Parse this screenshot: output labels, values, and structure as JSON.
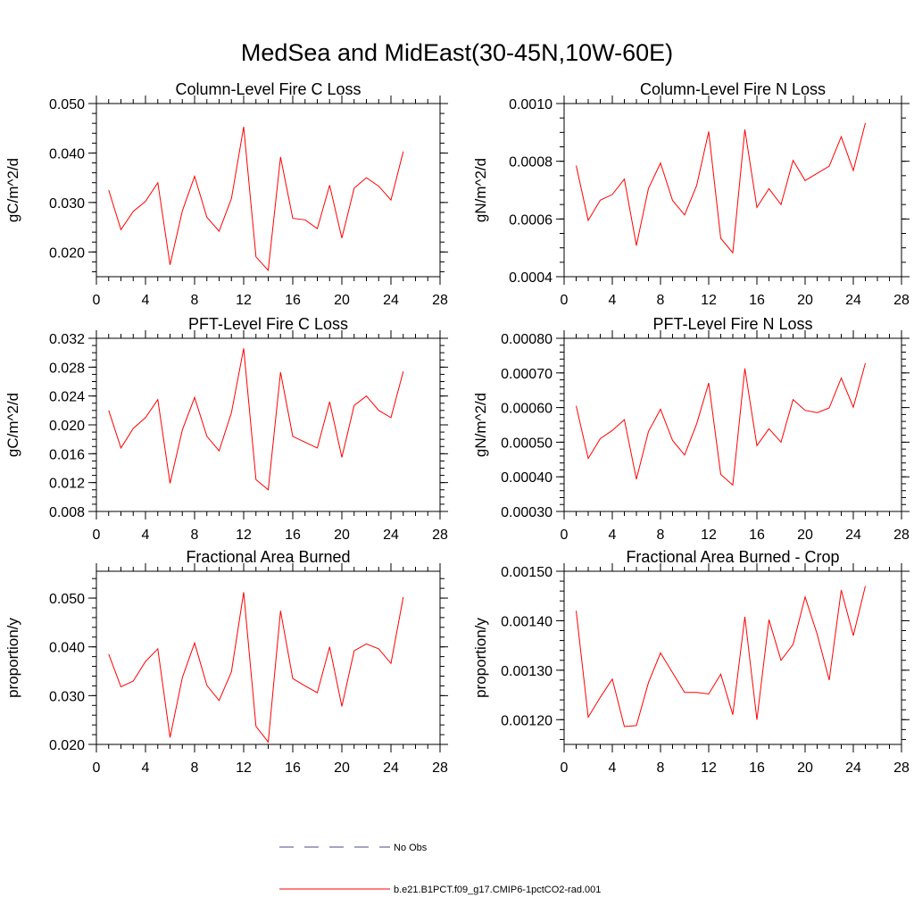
{
  "figure": {
    "title": "MedSea and MidEast(30-45N,10W-60E)"
  },
  "legend": {
    "entries": [
      {
        "label": "No Obs",
        "color": "#4a4a8a",
        "style": "dashed"
      },
      {
        "label": "b.e21.B1PCT.f09_g17.CMIP6-1pctCO2-rad.001",
        "color": "#ff0000",
        "style": "solid"
      }
    ]
  },
  "chart_data": [
    {
      "type": "line",
      "title": "Column-Level Fire C Loss",
      "ylabel": "gC/m^2/d",
      "xlim": [
        0,
        28
      ],
      "xticks": [
        0,
        4,
        8,
        12,
        16,
        20,
        24,
        28
      ],
      "ylim": [
        0.015,
        0.05
      ],
      "yticks": [
        0.02,
        0.03,
        0.04,
        0.05
      ],
      "ytick_labels": [
        "0.020",
        "0.030",
        "0.040",
        "0.050"
      ],
      "yminor_step": 0.002,
      "color": "#ff0000",
      "x": [
        1,
        2,
        3,
        4,
        5,
        6,
        7,
        8,
        9,
        10,
        11,
        12,
        13,
        14,
        15,
        16,
        17,
        18,
        19,
        20,
        21,
        22,
        23,
        24,
        25
      ],
      "values": [
        0.0325,
        0.0245,
        0.0282,
        0.0302,
        0.034,
        0.0174,
        0.0283,
        0.0353,
        0.027,
        0.0242,
        0.0308,
        0.0453,
        0.019,
        0.0163,
        0.0392,
        0.0268,
        0.0265,
        0.0247,
        0.0335,
        0.0228,
        0.0329,
        0.035,
        0.0333,
        0.0305,
        0.0403
      ]
    },
    {
      "type": "line",
      "title": "Column-Level Fire N Loss",
      "ylabel": "gN/m^2/d",
      "xlim": [
        0,
        28
      ],
      "xticks": [
        0,
        4,
        8,
        12,
        16,
        20,
        24,
        28
      ],
      "ylim": [
        0.0004,
        0.001
      ],
      "yticks": [
        0.0004,
        0.0006,
        0.0008,
        0.001
      ],
      "ytick_labels": [
        "0.0004",
        "0.0006",
        "0.0008",
        "0.0010"
      ],
      "yminor_step": 5e-05,
      "color": "#ff0000",
      "x": [
        1,
        2,
        3,
        4,
        5,
        6,
        7,
        8,
        9,
        10,
        11,
        12,
        13,
        14,
        15,
        16,
        17,
        18,
        19,
        20,
        21,
        22,
        23,
        24,
        25
      ],
      "values": [
        0.000785,
        0.000595,
        0.000665,
        0.000685,
        0.000738,
        0.000508,
        0.000706,
        0.000794,
        0.000664,
        0.000614,
        0.000716,
        0.000903,
        0.000533,
        0.000483,
        0.00091,
        0.00064,
        0.000705,
        0.00065,
        0.000803,
        0.000733,
        0.000758,
        0.000783,
        0.000885,
        0.000768,
        0.000933
      ]
    },
    {
      "type": "line",
      "title": "PFT-Level Fire C Loss",
      "ylabel": "gC/m^2/d",
      "xlim": [
        0,
        28
      ],
      "xticks": [
        0,
        4,
        8,
        12,
        16,
        20,
        24,
        28
      ],
      "ylim": [
        0.008,
        0.032
      ],
      "yticks": [
        0.008,
        0.012,
        0.016,
        0.02,
        0.024,
        0.028,
        0.032
      ],
      "ytick_labels": [
        "0.008",
        "0.012",
        "0.016",
        "0.020",
        "0.024",
        "0.028",
        "0.032"
      ],
      "yminor_step": 0.001,
      "color": "#ff0000",
      "x": [
        1,
        2,
        3,
        4,
        5,
        6,
        7,
        8,
        9,
        10,
        11,
        12,
        13,
        14,
        15,
        16,
        17,
        18,
        19,
        20,
        21,
        22,
        23,
        24,
        25
      ],
      "values": [
        0.022,
        0.0168,
        0.0195,
        0.021,
        0.0235,
        0.0119,
        0.0193,
        0.0238,
        0.0184,
        0.0164,
        0.0217,
        0.0306,
        0.0124,
        0.011,
        0.0273,
        0.0184,
        0.0176,
        0.0168,
        0.0232,
        0.0155,
        0.0227,
        0.024,
        0.022,
        0.021,
        0.0274
      ]
    },
    {
      "type": "line",
      "title": "PFT-Level Fire N Loss",
      "ylabel": "gN/m^2/d",
      "xlim": [
        0,
        28
      ],
      "xticks": [
        0,
        4,
        8,
        12,
        16,
        20,
        24,
        28
      ],
      "ylim": [
        0.0003,
        0.0008
      ],
      "yticks": [
        0.0003,
        0.0004,
        0.0005,
        0.0006,
        0.0007,
        0.0008
      ],
      "ytick_labels": [
        "0.00030",
        "0.00040",
        "0.00050",
        "0.00060",
        "0.00070",
        "0.00080"
      ],
      "yminor_step": 2e-05,
      "color": "#ff0000",
      "x": [
        1,
        2,
        3,
        4,
        5,
        6,
        7,
        8,
        9,
        10,
        11,
        12,
        13,
        14,
        15,
        16,
        17,
        18,
        19,
        20,
        21,
        22,
        23,
        24,
        25
      ],
      "values": [
        0.000605,
        0.000453,
        0.00051,
        0.000534,
        0.000565,
        0.000393,
        0.000531,
        0.000595,
        0.000505,
        0.000463,
        0.000553,
        0.000671,
        0.000407,
        0.000376,
        0.000713,
        0.00049,
        0.000539,
        0.0005,
        0.000623,
        0.000592,
        0.000585,
        0.000599,
        0.000685,
        0.000601,
        0.000728
      ]
    },
    {
      "type": "line",
      "title": "Fractional Area Burned",
      "ylabel": "proportion/y",
      "xlim": [
        0,
        28
      ],
      "xticks": [
        0,
        4,
        8,
        12,
        16,
        20,
        24,
        28
      ],
      "ylim": [
        0.02,
        0.0555
      ],
      "yticks": [
        0.02,
        0.03,
        0.04,
        0.05
      ],
      "ytick_labels": [
        "0.020",
        "0.030",
        "0.040",
        "0.050"
      ],
      "yminor_step": 0.002,
      "color": "#ff0000",
      "x": [
        1,
        2,
        3,
        4,
        5,
        6,
        7,
        8,
        9,
        10,
        11,
        12,
        13,
        14,
        15,
        16,
        17,
        18,
        19,
        20,
        21,
        22,
        23,
        24,
        25
      ],
      "values": [
        0.0385,
        0.0318,
        0.033,
        0.037,
        0.0396,
        0.0214,
        0.0337,
        0.0408,
        0.0321,
        0.029,
        0.0349,
        0.0512,
        0.0237,
        0.0205,
        0.0474,
        0.0335,
        0.032,
        0.0306,
        0.04,
        0.0278,
        0.0392,
        0.0406,
        0.0396,
        0.0366,
        0.0502
      ]
    },
    {
      "type": "line",
      "title": "Fractional Area Burned - Crop",
      "ylabel": "proportion/y",
      "xlim": [
        0,
        28
      ],
      "xticks": [
        0,
        4,
        8,
        12,
        16,
        20,
        24,
        28
      ],
      "ylim": [
        0.00115,
        0.0015
      ],
      "yticks": [
        0.0012,
        0.0013,
        0.0014,
        0.0015
      ],
      "ytick_labels": [
        "0.00120",
        "0.00130",
        "0.00140",
        "0.00150"
      ],
      "yminor_step": 2e-05,
      "color": "#ff0000",
      "x": [
        1,
        2,
        3,
        4,
        5,
        6,
        7,
        8,
        9,
        10,
        11,
        12,
        13,
        14,
        15,
        16,
        17,
        18,
        19,
        20,
        21,
        22,
        23,
        24,
        25
      ],
      "values": [
        0.00142,
        0.001205,
        0.001245,
        0.001282,
        0.001186,
        0.001188,
        0.001275,
        0.001335,
        0.001295,
        0.001255,
        0.001255,
        0.001252,
        0.001292,
        0.00121,
        0.001408,
        0.0012,
        0.001402,
        0.00132,
        0.001352,
        0.001448,
        0.001373,
        0.00128,
        0.001462,
        0.00137,
        0.00147
      ]
    }
  ]
}
